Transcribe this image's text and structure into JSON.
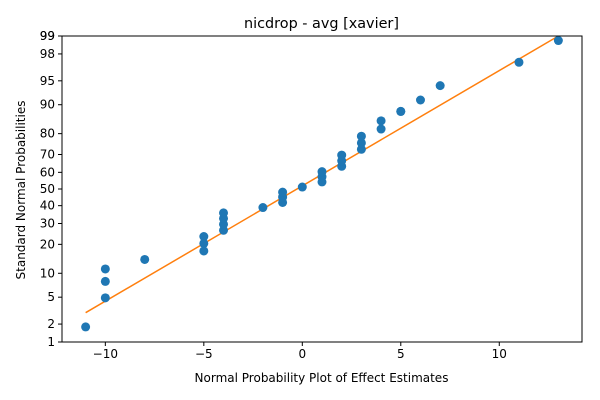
{
  "chart_data": {
    "type": "scatter",
    "title": "nicdrop - avg [xavier]",
    "xlabel": "Normal Probability Plot of Effect Estimates",
    "ylabel": "Standard Normal Probabilities",
    "xlim": [
      -12.2,
      14.2
    ],
    "y_scale": "normal-probability",
    "ylim_percent": [
      1,
      99
    ],
    "x_ticks": [
      -10,
      -5,
      0,
      5,
      10
    ],
    "x_tick_labels": [
      "−10",
      "−5",
      "0",
      "5",
      "10"
    ],
    "y_ticks": [
      1,
      2,
      5,
      10,
      20,
      30,
      40,
      50,
      60,
      70,
      80,
      90,
      95,
      98,
      99
    ],
    "y_tick_labels": [
      "1",
      "2",
      "5",
      "10",
      "20",
      "30",
      "40",
      "50",
      "60",
      "70",
      "80",
      "90",
      "95",
      "98",
      "99"
    ],
    "y_extra_tick": {
      "value": 99,
      "label": "99"
    },
    "grid": false,
    "points": [
      {
        "x": -11,
        "y": 1.8
      },
      {
        "x": -10,
        "y": 4.9
      },
      {
        "x": -10,
        "y": 8.0
      },
      {
        "x": -10,
        "y": 11.2
      },
      {
        "x": -8,
        "y": 14.2
      },
      {
        "x": -5,
        "y": 17.3
      },
      {
        "x": -5,
        "y": 20.4
      },
      {
        "x": -5,
        "y": 23.5
      },
      {
        "x": -4,
        "y": 26.5
      },
      {
        "x": -4,
        "y": 29.6
      },
      {
        "x": -4,
        "y": 32.7
      },
      {
        "x": -4,
        "y": 35.8
      },
      {
        "x": -2,
        "y": 38.9
      },
      {
        "x": -1,
        "y": 41.9
      },
      {
        "x": -1,
        "y": 45.1
      },
      {
        "x": -1,
        "y": 48.1
      },
      {
        "x": 0,
        "y": 51.2
      },
      {
        "x": 1,
        "y": 54.3
      },
      {
        "x": 1,
        "y": 57.4
      },
      {
        "x": 1,
        "y": 60.4
      },
      {
        "x": 2,
        "y": 63.5
      },
      {
        "x": 2,
        "y": 66.6
      },
      {
        "x": 2,
        "y": 69.7
      },
      {
        "x": 3,
        "y": 72.7
      },
      {
        "x": 3,
        "y": 75.8
      },
      {
        "x": 3,
        "y": 78.9
      },
      {
        "x": 4,
        "y": 81.9
      },
      {
        "x": 4,
        "y": 85.0
      },
      {
        "x": 5,
        "y": 88.1
      },
      {
        "x": 5,
        "y": 88.1
      },
      {
        "x": 6,
        "y": 91.2
      },
      {
        "x": 7,
        "y": 94.2
      },
      {
        "x": 11,
        "y": 97.3
      },
      {
        "x": 13,
        "y": 98.8
      }
    ],
    "fit_line": {
      "x": [
        -11,
        13
      ],
      "y": [
        3.0,
        99.0
      ]
    },
    "colors": {
      "points": "#1f77b4",
      "fit_line": "#ff7f0e",
      "axes": "#000000"
    }
  }
}
